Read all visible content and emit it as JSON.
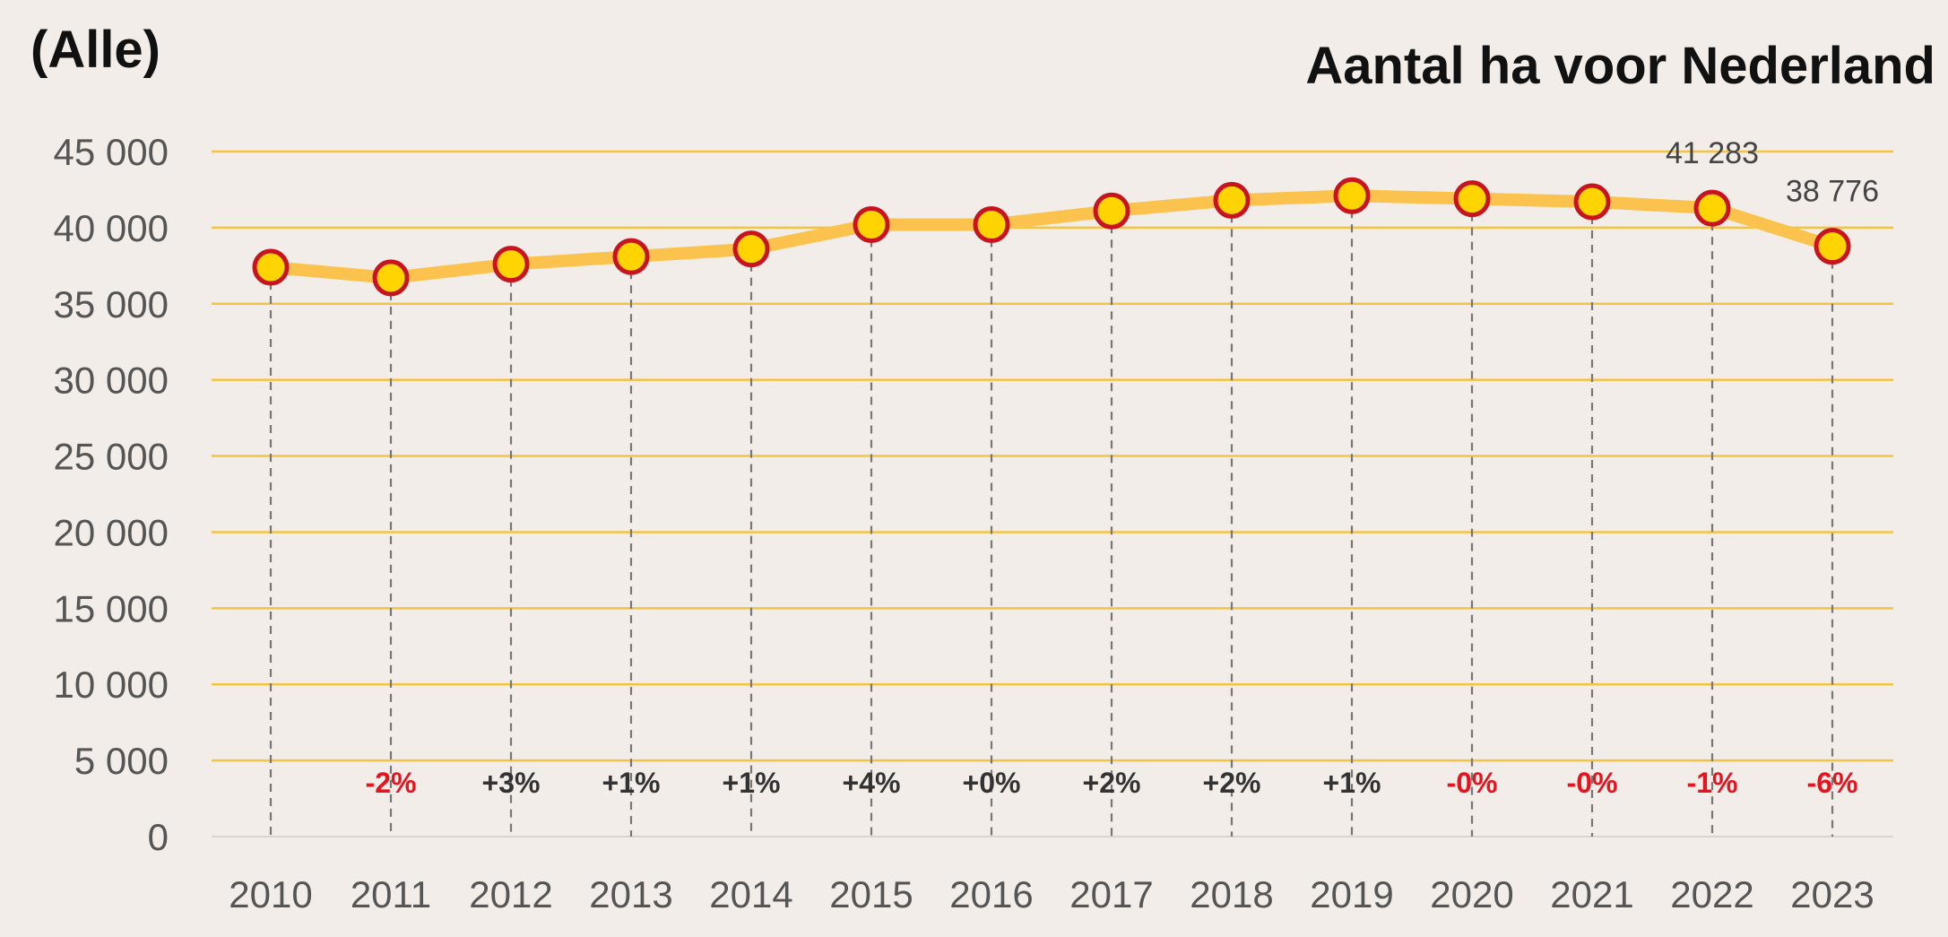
{
  "header": {
    "filter_label": "(Alle)",
    "title": "Aantal ha voor Nederland"
  },
  "colors": {
    "background": "#f2ede8",
    "line": "#fbc34d",
    "gridline": "#f5c342",
    "marker_fill": "#ffd400",
    "marker_stroke": "#c8141e",
    "negative_change": "#e6141e",
    "positive_change": "#333333"
  },
  "chart_data": {
    "type": "line",
    "title": "Aantal ha voor Nederland",
    "xlabel": "",
    "ylabel": "",
    "ylim": [
      0,
      45000
    ],
    "y_ticks": [
      0,
      5000,
      10000,
      15000,
      20000,
      25000,
      30000,
      35000,
      40000,
      45000
    ],
    "y_tick_labels": [
      "0",
      "5 000",
      "10 000",
      "15 000",
      "20 000",
      "25 000",
      "30 000",
      "35 000",
      "40 000",
      "45 000"
    ],
    "grid": true,
    "legend": "none",
    "categories": [
      "2010",
      "2011",
      "2012",
      "2013",
      "2014",
      "2015",
      "2016",
      "2017",
      "2018",
      "2019",
      "2020",
      "2021",
      "2022",
      "2023"
    ],
    "series": [
      {
        "values": [
          37400,
          36700,
          37600,
          38100,
          38600,
          40200,
          40200,
          41100,
          41800,
          42100,
          41900,
          41700,
          41283,
          38776
        ]
      }
    ],
    "data_labels": [
      {
        "category": "2022",
        "text": "41 283"
      },
      {
        "category": "2023",
        "text": "38 776"
      }
    ],
    "change_labels": [
      "",
      "-2%",
      "+3%",
      "+1%",
      "+1%",
      "+4%",
      "+0%",
      "+2%",
      "+2%",
      "+1%",
      "-0%",
      "-0%",
      "-1%",
      "-6%"
    ]
  }
}
